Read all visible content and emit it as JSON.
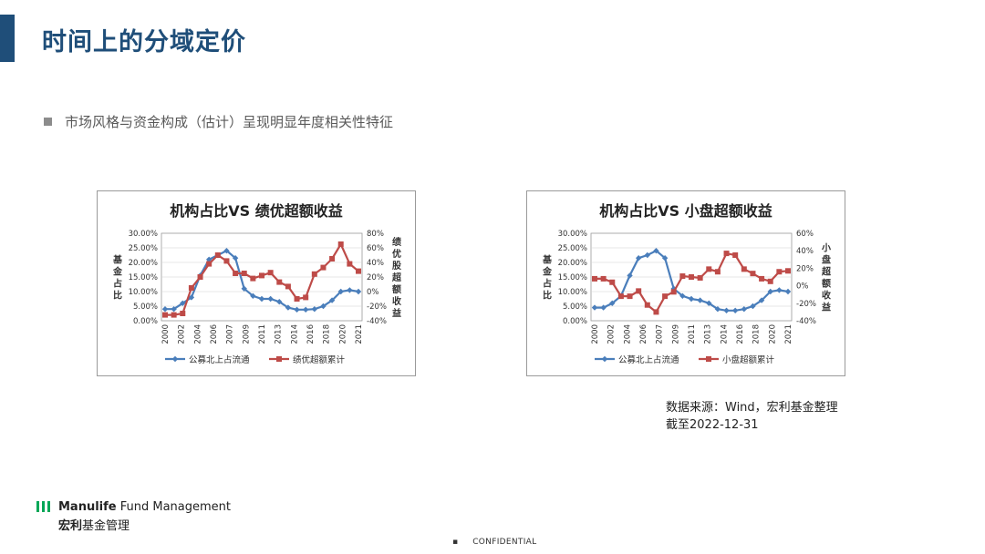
{
  "page": {
    "title": "时间上的分域定价",
    "bullet": "市场风格与资金构成（估计）呈现明显年度相关性特征",
    "source_line1": "数据来源：Wind，宏利基金整理",
    "source_line2": "截至2022-12-31",
    "footer": {
      "brand_en_bold": "Manulife",
      "brand_en_rest": " Fund Management",
      "brand_cn_bold": "宏利",
      "brand_cn_rest": "基金管理",
      "confidential": "CONFIDENTIAL",
      "confidential_mark": "▪"
    }
  },
  "colors": {
    "accent": "#1f4e79",
    "blue_series": "#4a7ebb",
    "red_series": "#be4b48"
  },
  "chart_data": [
    {
      "type": "line",
      "title": "机构占比VS 绩优超额收益",
      "ylabel_left": "基金占比",
      "ylabel_right": "绩优股超额收益",
      "ylim_left": [
        0,
        0.3
      ],
      "ylim_right": [
        -0.4,
        0.8
      ],
      "yticks_left": [
        "30.00%",
        "25.00%",
        "20.00%",
        "15.00%",
        "10.00%",
        "5.00%",
        "0.00%"
      ],
      "yticks_right": [
        "80%",
        "60%",
        "40%",
        "20%",
        "0%",
        "-20%",
        "-40%"
      ],
      "x": [
        "2000",
        "2001",
        "2002",
        "2003",
        "2004",
        "2005",
        "2006",
        "2007",
        "2008",
        "2009",
        "2010",
        "2011",
        "2012",
        "2013",
        "2014",
        "2015",
        "2016",
        "2017",
        "2018",
        "2019",
        "2020",
        "2021",
        "2022"
      ],
      "xtick_labels": [
        "2000",
        "2002",
        "2004",
        "2006",
        "2007",
        "2009",
        "2011",
        "2013",
        "2014",
        "2016",
        "2018",
        "2020",
        "2021"
      ],
      "series": [
        {
          "name": "公募北上占流通",
          "axis": "left",
          "color": "#4a7ebb",
          "marker": "diamond",
          "values": [
            0.04,
            0.04,
            0.06,
            0.08,
            0.155,
            0.21,
            0.225,
            0.24,
            0.215,
            0.11,
            0.085,
            0.075,
            0.075,
            0.065,
            0.045,
            0.038,
            0.038,
            0.04,
            0.05,
            0.07,
            0.1,
            0.105,
            0.1
          ]
        },
        {
          "name": "绩优超额累计",
          "axis": "right",
          "color": "#be4b48",
          "marker": "square",
          "values": [
            -0.32,
            -0.32,
            -0.3,
            0.05,
            0.2,
            0.38,
            0.5,
            0.42,
            0.25,
            0.25,
            0.18,
            0.22,
            0.26,
            0.13,
            0.07,
            -0.1,
            -0.08,
            0.24,
            0.33,
            0.45,
            0.65,
            0.38,
            0.28
          ]
        }
      ]
    },
    {
      "type": "line",
      "title": "机构占比VS 小盘超额收益",
      "ylabel_left": "基金占比",
      "ylabel_right": "小盘超额收益",
      "ylim_left": [
        0,
        0.3
      ],
      "ylim_right": [
        -0.4,
        0.6
      ],
      "yticks_left": [
        "30.00%",
        "25.00%",
        "20.00%",
        "15.00%",
        "10.00%",
        "5.00%",
        "0.00%"
      ],
      "yticks_right": [
        "60%",
        "40%",
        "20%",
        "0%",
        "-20%",
        "-40%"
      ],
      "x": [
        "2000",
        "2001",
        "2002",
        "2003",
        "2004",
        "2005",
        "2006",
        "2007",
        "2008",
        "2009",
        "2010",
        "2011",
        "2012",
        "2013",
        "2014",
        "2015",
        "2016",
        "2017",
        "2018",
        "2019",
        "2020",
        "2021",
        "2022"
      ],
      "xtick_labels": [
        "2000",
        "2002",
        "2004",
        "2006",
        "2007",
        "2009",
        "2011",
        "2013",
        "2014",
        "2016",
        "2018",
        "2020",
        "2021"
      ],
      "series": [
        {
          "name": "公募北上占流通",
          "axis": "left",
          "color": "#4a7ebb",
          "marker": "diamond",
          "values": [
            0.045,
            0.045,
            0.06,
            0.085,
            0.155,
            0.215,
            0.225,
            0.24,
            0.215,
            0.11,
            0.085,
            0.075,
            0.07,
            0.06,
            0.04,
            0.035,
            0.035,
            0.04,
            0.05,
            0.07,
            0.1,
            0.105,
            0.1
          ]
        },
        {
          "name": "小盘超额累计",
          "axis": "right",
          "color": "#be4b48",
          "marker": "square",
          "values": [
            0.08,
            0.08,
            0.04,
            -0.12,
            -0.12,
            -0.06,
            -0.22,
            -0.3,
            -0.12,
            -0.07,
            0.11,
            0.1,
            0.09,
            0.19,
            0.16,
            0.37,
            0.35,
            0.19,
            0.14,
            0.08,
            0.05,
            0.16,
            0.17
          ]
        }
      ]
    }
  ]
}
